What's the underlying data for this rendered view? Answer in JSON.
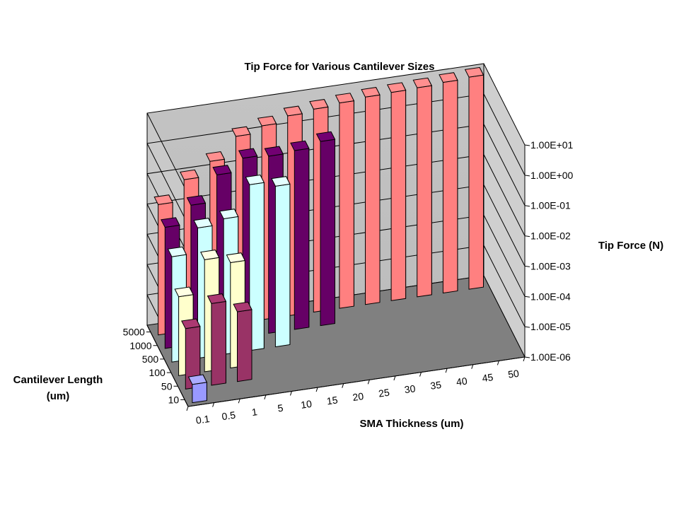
{
  "chart_data": {
    "type": "bar",
    "variant": "3d-column",
    "title": "Tip Force for Various Cantilever Sizes",
    "xlabel": "SMA Thickness (um)",
    "ylabel": "Tip Force (N)",
    "zlabel_lines": [
      "Cantilever Length",
      "(um)"
    ],
    "x_categories": [
      "0.1",
      "0.5",
      "1",
      "5",
      "10",
      "15",
      "20",
      "25",
      "30",
      "35",
      "40",
      "45",
      "50"
    ],
    "z_categories": [
      "10",
      "50",
      "100",
      "500",
      "1000",
      "5000"
    ],
    "y_scale": "log",
    "y_ticks": [
      "1.00E-06",
      "1.00E-05",
      "1.00E-04",
      "1.00E-03",
      "1.00E-02",
      "1.00E-01",
      "1.00E+00",
      "1.00E+01"
    ],
    "ylim": [
      1e-06,
      10
    ],
    "grid": true,
    "series": [
      {
        "length": "10",
        "color": "#9999ff",
        "values": [
          4e-06,
          null,
          null,
          null,
          null,
          null,
          null,
          null,
          null,
          null,
          null,
          null,
          null
        ]
      },
      {
        "length": "50",
        "color": "#993366",
        "values": [
          0.0001,
          0.0005,
          0.0002,
          null,
          null,
          null,
          null,
          null,
          null,
          null,
          null,
          null,
          null
        ]
      },
      {
        "length": "100",
        "color": "#ffffcc",
        "values": [
          0.0004,
          0.005,
          0.003,
          null,
          null,
          null,
          null,
          null,
          null,
          null,
          null,
          null,
          null
        ]
      },
      {
        "length": "500",
        "color": "#ccffff",
        "values": [
          0.003,
          0.02,
          0.03,
          0.3,
          0.2,
          null,
          null,
          null,
          null,
          null,
          null,
          null,
          null
        ]
      },
      {
        "length": "1000",
        "color": "#660066",
        "values": [
          0.01,
          0.04,
          0.3,
          0.8,
          0.7,
          0.8,
          1.2,
          null,
          null,
          null,
          null,
          null,
          null
        ]
      },
      {
        "length": "5000",
        "color": "#ff8080",
        "values": [
          0.02,
          0.1,
          0.3,
          1.5,
          2.5,
          4,
          5,
          6,
          7,
          7.5,
          8,
          9,
          10
        ]
      }
    ]
  }
}
